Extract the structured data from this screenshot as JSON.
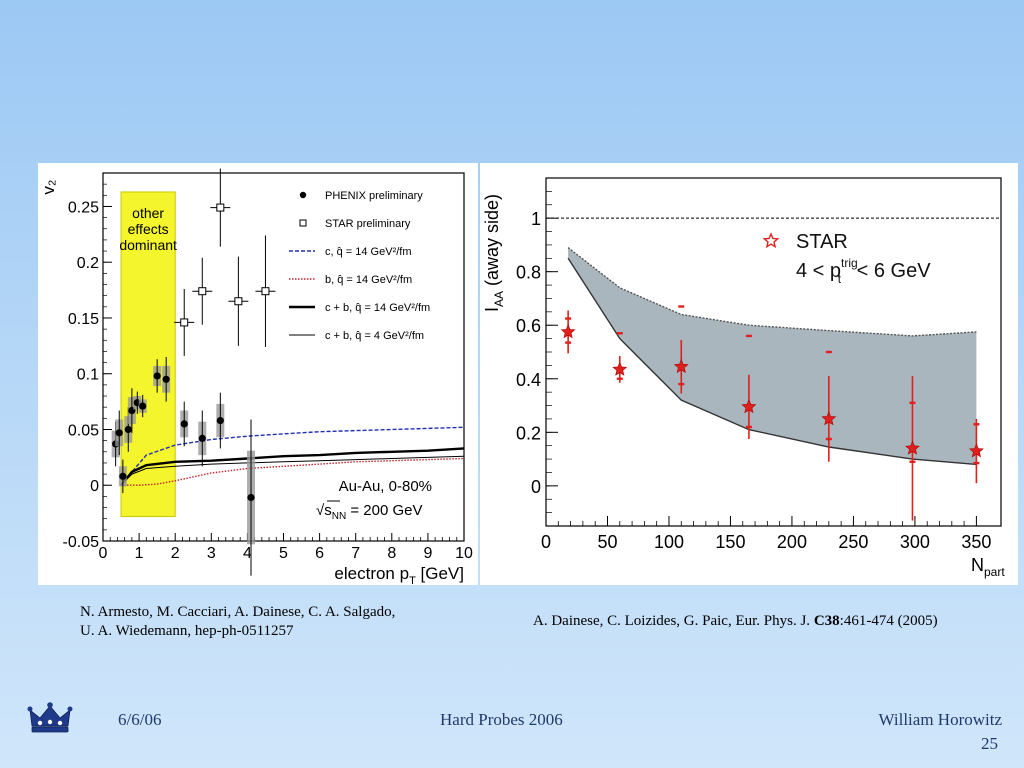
{
  "chart_data": [
    {
      "type": "scatter",
      "ylabel": "v₂",
      "xlabel": "electron p",
      "xlabel_sub": "T",
      "xlabel_unit": " [GeV]",
      "xlim": [
        0,
        10
      ],
      "ylim": [
        -0.05,
        0.28
      ],
      "x_ticks": [
        0,
        1,
        2,
        3,
        4,
        5,
        6,
        7,
        8,
        9,
        10
      ],
      "y_ticks": [
        -0.05,
        0,
        0.05,
        0.1,
        0.15,
        0.2,
        0.25
      ],
      "y_tick_labels": [
        "-0.05",
        "0",
        "0.05",
        "0.1",
        "0.15",
        "0.2",
        "0.25"
      ],
      "highlight_band": {
        "x_range": [
          0.5,
          2.0
        ],
        "y_range": [
          -0.028,
          0.263
        ],
        "color": "#f5f52e",
        "label_lines": [
          "other",
          "effects",
          "dominant"
        ]
      },
      "annotation_lines": [
        "Au-Au, 0-80%",
        "√s",
        "NN",
        " = 200 GeV"
      ],
      "legend_entries": [
        "PHENIX preliminary",
        "STAR preliminary",
        "c, q̂ = 14 GeV²/fm",
        "b, q̂ = 14 GeV²/fm",
        "c + b, q̂ = 14 GeV²/fm",
        "c + b, q̂ = 4 GeV²/fm"
      ],
      "series": [
        {
          "name": "PHENIX preliminary",
          "marker": "filled-circle",
          "color": "#000000",
          "points": [
            {
              "x": 0.35,
              "y": 0.037,
              "err": 0.02
            },
            {
              "x": 0.45,
              "y": 0.047,
              "err": 0.02
            },
            {
              "x": 0.55,
              "y": 0.008,
              "err": 0.015
            },
            {
              "x": 0.7,
              "y": 0.05,
              "err": 0.02
            },
            {
              "x": 0.8,
              "y": 0.067,
              "err": 0.02
            },
            {
              "x": 0.95,
              "y": 0.074,
              "err": 0.01
            },
            {
              "x": 1.1,
              "y": 0.071,
              "err": 0.01
            },
            {
              "x": 1.5,
              "y": 0.098,
              "err": 0.015
            },
            {
              "x": 1.75,
              "y": 0.095,
              "err": 0.02
            },
            {
              "x": 2.25,
              "y": 0.055,
              "err": 0.02
            },
            {
              "x": 2.75,
              "y": 0.042,
              "err": 0.025
            },
            {
              "x": 3.25,
              "y": 0.058,
              "err": 0.025
            },
            {
              "x": 4.1,
              "y": -0.011,
              "err": 0.07
            }
          ]
        },
        {
          "name": "STAR preliminary",
          "marker": "open-square",
          "color": "#000000",
          "points": [
            {
              "x": 2.25,
              "y": 0.146,
              "err": 0.03
            },
            {
              "x": 2.75,
              "y": 0.174,
              "err": 0.03
            },
            {
              "x": 3.25,
              "y": 0.249,
              "err": 0.035
            },
            {
              "x": 3.75,
              "y": 0.165,
              "err": 0.04
            },
            {
              "x": 4.5,
              "y": 0.174,
              "err": 0.05
            }
          ]
        },
        {
          "name": "c, q̂ = 14 GeV²/fm",
          "style": "dashed",
          "color": "#1f2fb0",
          "x": [
            0.5,
            0.8,
            1.2,
            2,
            3,
            4,
            5,
            6,
            7,
            8,
            9,
            10
          ],
          "y": [
            0.0,
            0.012,
            0.027,
            0.036,
            0.041,
            0.044,
            0.046,
            0.048,
            0.049,
            0.05,
            0.051,
            0.052
          ]
        },
        {
          "name": "b, q̂ = 14 GeV²/fm",
          "style": "dotted",
          "color": "#c0242a",
          "x": [
            0.5,
            1,
            1.5,
            2,
            3,
            4,
            5,
            6,
            7,
            8,
            9,
            10
          ],
          "y": [
            0.0,
            0.0,
            0.001,
            0.004,
            0.011,
            0.015,
            0.017,
            0.019,
            0.021,
            0.022,
            0.023,
            0.024
          ]
        },
        {
          "name": "c + b, q̂ = 14 GeV²/fm",
          "style": "solid-thick",
          "color": "#000000",
          "x": [
            0.5,
            0.8,
            1.2,
            2,
            3,
            4,
            5,
            6,
            7,
            8,
            9,
            10
          ],
          "y": [
            0.0,
            0.012,
            0.018,
            0.021,
            0.022,
            0.024,
            0.026,
            0.027,
            0.029,
            0.03,
            0.031,
            0.033
          ]
        },
        {
          "name": "c + b, q̂ = 4 GeV²/fm",
          "style": "solid-thin",
          "color": "#000000",
          "x": [
            0.5,
            0.8,
            1.2,
            2,
            3,
            4,
            5,
            6,
            7,
            8,
            9,
            10
          ],
          "y": [
            0.0,
            0.01,
            0.015,
            0.017,
            0.019,
            0.02,
            0.021,
            0.022,
            0.023,
            0.024,
            0.025,
            0.026
          ]
        }
      ]
    },
    {
      "type": "scatter",
      "ylabel_main": "I",
      "ylabel_sub": "AA",
      "ylabel_paren": "(away side)",
      "xlabel_main": "N",
      "xlabel_sub": "part",
      "xlim": [
        0,
        370
      ],
      "ylim": [
        -0.15,
        1.15
      ],
      "x_ticks": [
        0,
        50,
        100,
        150,
        200,
        250,
        300,
        350
      ],
      "y_ticks": [
        0,
        0.2,
        0.4,
        0.6,
        0.8,
        1
      ],
      "y_tick_labels": [
        "0",
        "0.2",
        "0.4",
        "0.6",
        "0.8",
        "1"
      ],
      "reference_line": 1.0,
      "legend": {
        "label": "STAR",
        "line2_prefix": "4 < p",
        "line2_sup": "trig",
        "line2_sub": "t",
        "line2_suffix": " < 6 GeV"
      },
      "band": {
        "color": "#a9b6bd",
        "x": [
          18,
          60,
          110,
          165,
          230,
          298,
          350
        ],
        "upper": [
          0.89,
          0.74,
          0.64,
          0.6,
          0.58,
          0.56,
          0.575
        ],
        "lower": [
          0.85,
          0.55,
          0.32,
          0.21,
          0.145,
          0.1,
          0.08
        ]
      },
      "series": [
        {
          "name": "STAR",
          "marker": "star",
          "color": "#e0201c",
          "points": [
            {
              "x": 18,
              "y": 0.575,
              "err": 0.08,
              "sys_hi": 0.625,
              "sys_lo": 0.535
            },
            {
              "x": 60,
              "y": 0.435,
              "err": 0.05,
              "sys_hi": 0.57,
              "sys_lo": 0.4
            },
            {
              "x": 110,
              "y": 0.445,
              "err": 0.1,
              "sys_hi": 0.67,
              "sys_lo": 0.38
            },
            {
              "x": 165,
              "y": 0.295,
              "err": 0.12,
              "sys_hi": 0.56,
              "sys_lo": 0.22
            },
            {
              "x": 230,
              "y": 0.25,
              "err": 0.16,
              "sys_hi": 0.5,
              "sys_lo": 0.175
            },
            {
              "x": 298,
              "y": 0.14,
              "err": 0.27,
              "sys_hi": 0.31,
              "sys_lo": 0.09
            },
            {
              "x": 350,
              "y": 0.13,
              "err": 0.12,
              "sys_hi": 0.23,
              "sys_lo": 0.085
            }
          ]
        }
      ]
    }
  ],
  "captions": {
    "left_line1": "N. Armesto, M. Cacciari, A. Dainese, C. A. Salgado,",
    "left_line2": "U. A. Wiedemann, hep-ph-0511257",
    "right_prefix": "A. Dainese, C. Loizides, G. Paic, Eur. Phys. J. ",
    "right_bold": "C38",
    "right_suffix": ":461-474 (2005)"
  },
  "footer": {
    "date": "6/6/06",
    "conference": "Hard Probes 2006",
    "author": "William Horowitz",
    "page": "25"
  },
  "icons": {
    "logo": "crown-icon"
  }
}
